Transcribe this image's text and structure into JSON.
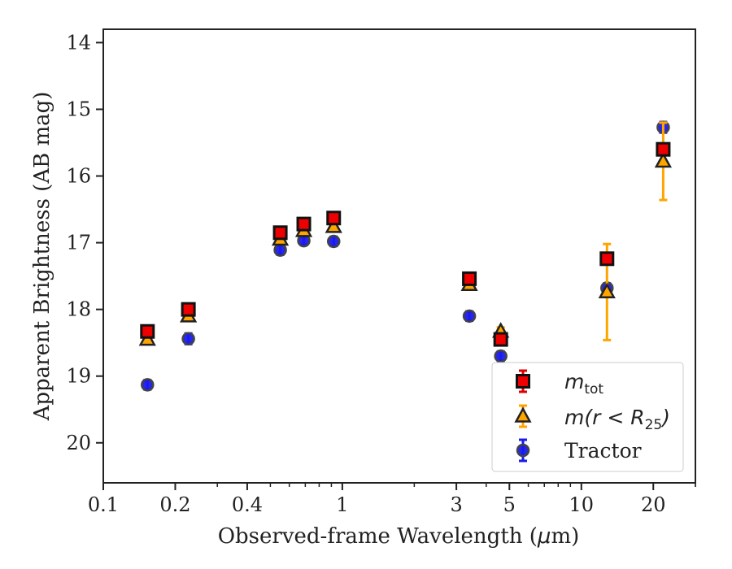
{
  "chart_data": {
    "type": "scatter",
    "xscale": "log",
    "xlim": [
      0.1,
      30
    ],
    "ylim": [
      20.6,
      13.8
    ],
    "y_inverted": true,
    "xlabel_prefix": "Observed-frame Wavelength (",
    "xlabel_mu": "μ",
    "xlabel_suffix": "m)",
    "ylabel": "Apparent Brightness (AB mag)",
    "x_ticks": [
      {
        "value": 0.1,
        "label": "0.1"
      },
      {
        "value": 0.2,
        "label": "0.2"
      },
      {
        "value": 0.4,
        "label": "0.4"
      },
      {
        "value": 1,
        "label": "1"
      },
      {
        "value": 3,
        "label": "3"
      },
      {
        "value": 5,
        "label": "5"
      },
      {
        "value": 10,
        "label": "10"
      },
      {
        "value": 20,
        "label": "20"
      }
    ],
    "y_ticks": [
      {
        "value": 14,
        "label": "14"
      },
      {
        "value": 15,
        "label": "15"
      },
      {
        "value": 16,
        "label": "16"
      },
      {
        "value": 17,
        "label": "17"
      },
      {
        "value": 18,
        "label": "18"
      },
      {
        "value": 19,
        "label": "19"
      },
      {
        "value": 20,
        "label": "20"
      }
    ],
    "grid": false,
    "legend_position": "lower-right",
    "series": [
      {
        "key": "mtot",
        "legend_base": "m",
        "legend_sub": "tot",
        "legend_rest": "",
        "marker": "square",
        "color": "#ee0000",
        "errcolor": "#dd0000",
        "edge": "#111111",
        "points": [
          {
            "x": 0.153,
            "y": 18.33,
            "err": 0.05
          },
          {
            "x": 0.227,
            "y": 18.0,
            "err": 0.05
          },
          {
            "x": 0.55,
            "y": 16.85,
            "err": 0.04
          },
          {
            "x": 0.69,
            "y": 16.72,
            "err": 0.04
          },
          {
            "x": 0.92,
            "y": 16.63,
            "err": 0.04
          },
          {
            "x": 3.4,
            "y": 17.54,
            "err": 0.04
          },
          {
            "x": 4.6,
            "y": 18.45,
            "err": 0.06
          },
          {
            "x": 12.8,
            "y": 17.24,
            "err": 0.06
          },
          {
            "x": 22.0,
            "y": 15.6,
            "err": 0.07
          }
        ]
      },
      {
        "key": "mr25",
        "legend_base": "m",
        "legend_sub": "25",
        "legend_rest": "(r < R",
        "marker": "triangle",
        "color": "#ffa500",
        "errcolor": "#ffa500",
        "edge": "#222222",
        "points": [
          {
            "x": 0.153,
            "y": 18.45,
            "err": 0.04
          },
          {
            "x": 0.227,
            "y": 18.1,
            "err": 0.04
          },
          {
            "x": 0.55,
            "y": 16.95,
            "err": 0.04
          },
          {
            "x": 0.69,
            "y": 16.82,
            "err": 0.04
          },
          {
            "x": 0.92,
            "y": 16.76,
            "err": 0.04
          },
          {
            "x": 3.4,
            "y": 17.63,
            "err": 0.04
          },
          {
            "x": 4.6,
            "y": 18.33,
            "err": 0.06
          },
          {
            "x": 12.8,
            "y": 17.74,
            "err": 0.72
          },
          {
            "x": 22.0,
            "y": 15.78,
            "err": 0.58
          }
        ]
      },
      {
        "key": "tractor",
        "legend_base": "",
        "legend_sub": "",
        "legend_rest": "",
        "name": "Tractor",
        "marker": "circle",
        "color": "#1a1aee",
        "errcolor": "#1a1aee",
        "edge": "#444444",
        "points": [
          {
            "x": 0.153,
            "y": 19.13,
            "err": 0.07
          },
          {
            "x": 0.227,
            "y": 18.44,
            "err": 0.08
          },
          {
            "x": 0.55,
            "y": 17.11,
            "err": 0.07
          },
          {
            "x": 0.69,
            "y": 16.97,
            "err": 0.06
          },
          {
            "x": 0.92,
            "y": 16.98,
            "err": 0.07
          },
          {
            "x": 3.4,
            "y": 18.1,
            "err": 0.07
          },
          {
            "x": 4.6,
            "y": 18.7,
            "err": 0.07
          },
          {
            "x": 12.8,
            "y": 17.68,
            "err": 0.07
          },
          {
            "x": 22.0,
            "y": 15.27,
            "err": 0.08
          }
        ]
      }
    ]
  }
}
